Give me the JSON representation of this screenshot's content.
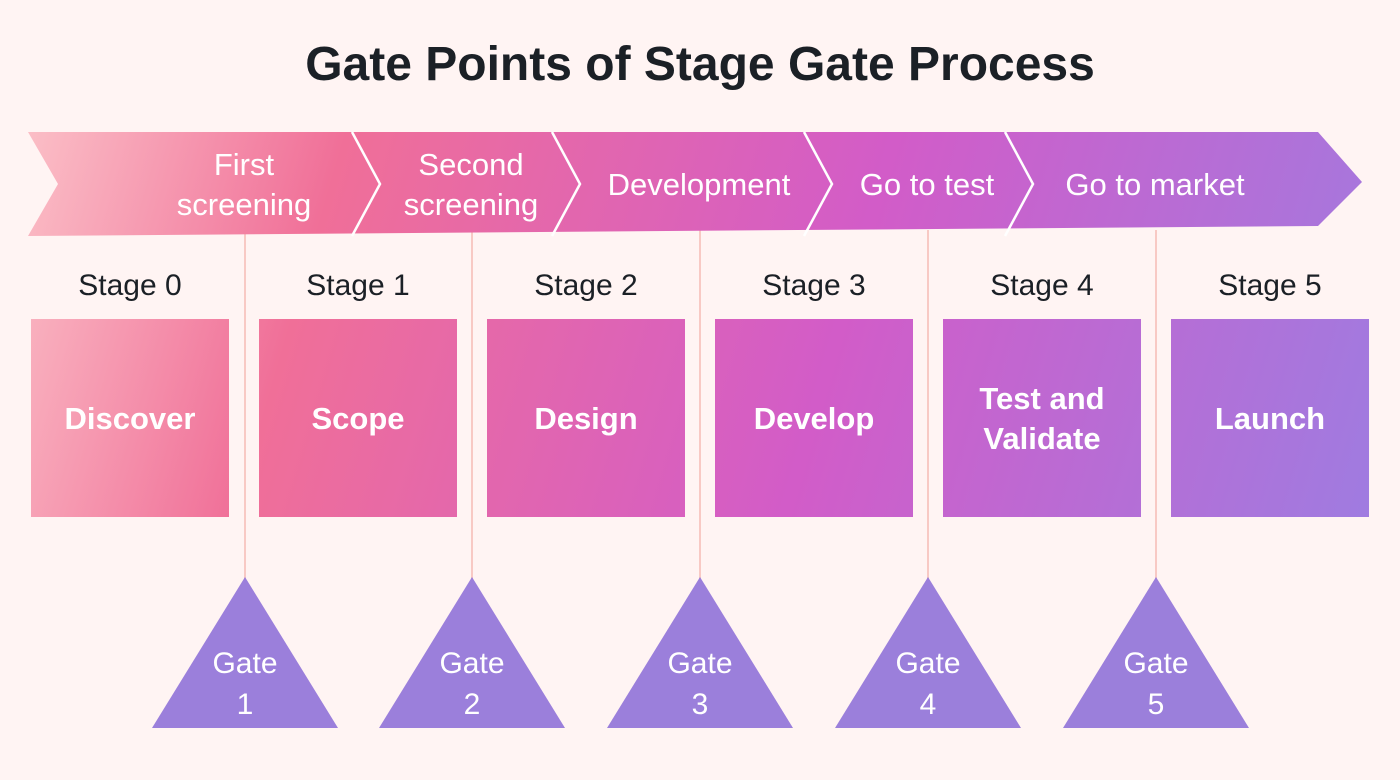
{
  "title": "Gate Points of Stage Gate Process",
  "phases": [
    "First|screening",
    "Second|screening",
    "Development",
    "Go to test",
    "Go to market"
  ],
  "stages": [
    {
      "label": "Stage 0",
      "name": "Discover"
    },
    {
      "label": "Stage 1",
      "name": "Scope"
    },
    {
      "label": "Stage 2",
      "name": "Design"
    },
    {
      "label": "Stage 3",
      "name": "Develop"
    },
    {
      "label": "Stage 4",
      "name": "Test and|Validate"
    },
    {
      "label": "Stage 5",
      "name": "Launch"
    }
  ],
  "gates": [
    {
      "word": "Gate",
      "num": "1"
    },
    {
      "word": "Gate",
      "num": "2"
    },
    {
      "word": "Gate",
      "num": "3"
    },
    {
      "word": "Gate",
      "num": "4"
    },
    {
      "word": "Gate",
      "num": "5"
    }
  ],
  "colors": {
    "background": "#fff4f3",
    "gradient": [
      "#fbbec6",
      "#f06f98",
      "#d85fc4",
      "#a07be0"
    ],
    "gate": "#9b7fdb",
    "connector": "#f8c9c4"
  }
}
